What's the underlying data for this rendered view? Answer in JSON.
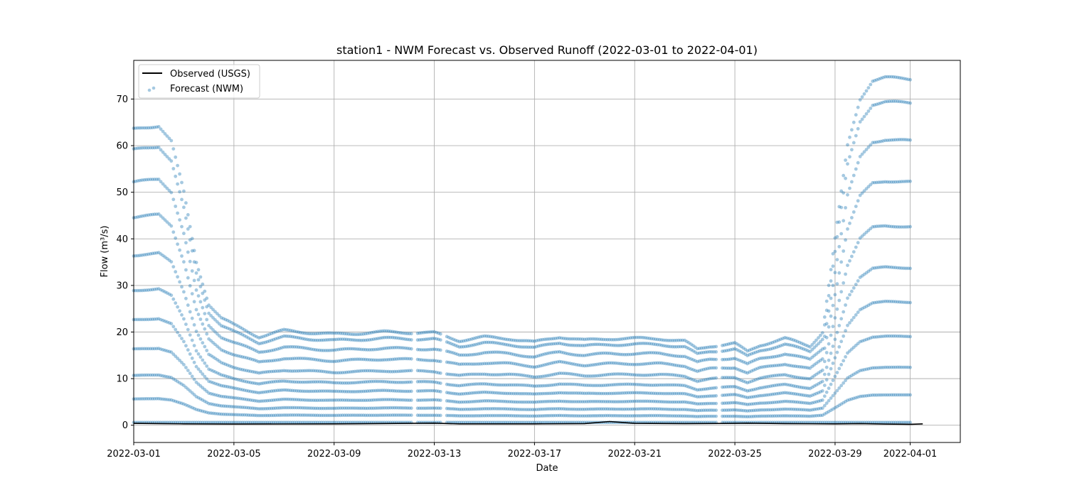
{
  "chart_data": {
    "type": "scatter",
    "title": "station1 - NWM Forecast vs. Observed Runoff (2022-03-01 to 2022-04-01)",
    "xlabel": "Date",
    "ylabel": "Flow (m³/s)",
    "xlim": [
      "2022-02-29",
      "2022-04-03"
    ],
    "ylim": [
      -3.7,
      78.3
    ],
    "x_ticks": [
      "2022-03-01",
      "2022-03-05",
      "2022-03-09",
      "2022-03-13",
      "2022-03-17",
      "2022-03-21",
      "2022-03-25",
      "2022-03-29",
      "2022-04-01"
    ],
    "y_ticks": [
      0,
      10,
      20,
      30,
      40,
      50,
      60,
      70
    ],
    "y_tick_labels": [
      "0",
      "10",
      "20",
      "30",
      "40",
      "50",
      "60",
      "70"
    ],
    "grid": true,
    "legend_position": "top-left",
    "legend": [
      "Observed (USGS)",
      "Forecast (NWM)"
    ],
    "colors": {
      "observed": "#000000",
      "forecast": "#1f77b4"
    },
    "forecast_levels": [
      1.0,
      0.93,
      0.82,
      0.7,
      0.57,
      0.45,
      0.35,
      0.25,
      0.16,
      0.08,
      0.0
    ],
    "forecast_profile": [
      [
        "2022-03-01",
        63.5
      ],
      [
        "2022-03-02",
        64.3
      ],
      [
        "2022-03-02T12:00",
        61.0
      ],
      [
        "2022-03-03",
        50.0
      ],
      [
        "2022-03-03T12:00",
        35.0
      ],
      [
        "2022-03-04",
        26.0
      ],
      [
        "2022-03-04T12:00",
        23.0
      ],
      [
        "2022-03-05",
        21.5
      ],
      [
        "2022-03-06",
        19.0
      ],
      [
        "2022-03-07",
        20.3
      ],
      [
        "2022-03-09",
        19.5
      ],
      [
        "2022-03-11",
        20.0
      ],
      [
        "2022-03-13",
        19.8
      ],
      [
        "2022-03-14",
        18.2
      ],
      [
        "2022-03-15",
        18.9
      ],
      [
        "2022-03-16",
        18.6
      ],
      [
        "2022-03-17",
        17.8
      ],
      [
        "2022-03-18",
        19.0
      ],
      [
        "2022-03-19",
        18.2
      ],
      [
        "2022-03-20",
        18.6
      ],
      [
        "2022-03-21",
        18.6
      ],
      [
        "2022-03-22",
        18.6
      ],
      [
        "2022-03-23",
        18.0
      ],
      [
        "2022-03-23T12:00",
        16.3
      ],
      [
        "2022-03-24",
        17.0
      ],
      [
        "2022-03-25",
        17.5
      ],
      [
        "2022-03-25T12:00",
        15.8
      ],
      [
        "2022-03-26",
        17.2
      ],
      [
        "2022-03-27",
        18.6
      ],
      [
        "2022-03-28",
        17.0
      ],
      [
        "2022-03-28T12:00",
        20.0
      ],
      [
        "2022-03-29",
        40.0
      ],
      [
        "2022-03-29T12:00",
        60.0
      ],
      [
        "2022-03-30",
        70.0
      ],
      [
        "2022-03-30T12:00",
        74.0
      ],
      [
        "2022-03-31",
        74.6
      ],
      [
        "2022-04-01",
        74.3
      ]
    ],
    "observed": [
      [
        "2022-03-01",
        0.4
      ],
      [
        "2022-03-02",
        0.35
      ],
      [
        "2022-03-03",
        0.3
      ],
      [
        "2022-03-05",
        0.25
      ],
      [
        "2022-03-09",
        0.3
      ],
      [
        "2022-03-13",
        0.45
      ],
      [
        "2022-03-14",
        0.3
      ],
      [
        "2022-03-17",
        0.3
      ],
      [
        "2022-03-19",
        0.35
      ],
      [
        "2022-03-20",
        0.8
      ],
      [
        "2022-03-20T12:00",
        0.6
      ],
      [
        "2022-03-21",
        0.4
      ],
      [
        "2022-03-23",
        0.35
      ],
      [
        "2022-03-25",
        0.4
      ],
      [
        "2022-03-25T12:00",
        0.45
      ],
      [
        "2022-03-27",
        0.35
      ],
      [
        "2022-03-29",
        0.3
      ],
      [
        "2022-03-30",
        0.35
      ],
      [
        "2022-03-31",
        0.25
      ],
      [
        "2022-04-01",
        0.2
      ],
      [
        "2022-04-01T12:00",
        0.3
      ]
    ]
  }
}
